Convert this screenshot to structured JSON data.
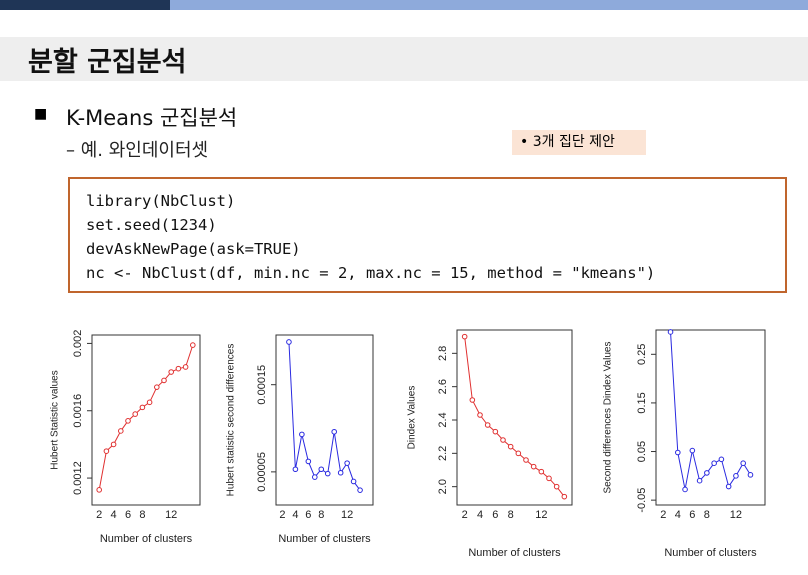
{
  "header": {
    "title": "분할 군집분석"
  },
  "bullet": {
    "title": "K-Means 군집분석",
    "sub": "– 예. 와인데이터셋"
  },
  "note": "• 3개 집단 제안",
  "code": [
    "library(NbClust)",
    "set.seed(1234)",
    "devAskNewPage(ask=TRUE)",
    "nc <- NbClust(df, min.nc = 2, max.nc = 15, method = \"kmeans\")"
  ],
  "chart_data": [
    {
      "type": "line",
      "xlabel": "Number of clusters",
      "ylabel": "Hubert Statistic values",
      "color": "#e03030",
      "x": [
        2,
        3,
        4,
        5,
        6,
        7,
        8,
        9,
        10,
        11,
        12,
        13,
        14,
        15
      ],
      "values": [
        0.00113,
        0.00136,
        0.0014,
        0.00148,
        0.00154,
        0.00158,
        0.00162,
        0.00165,
        0.00174,
        0.00178,
        0.00183,
        0.00185,
        0.00186,
        0.00199
      ],
      "xlim": [
        1,
        16
      ],
      "ylim": [
        0.00104,
        0.00205
      ],
      "xticks": [
        2,
        4,
        6,
        8,
        12
      ],
      "yticks": [
        0.0012,
        0.0016,
        0.002
      ]
    },
    {
      "type": "line",
      "xlabel": "Number of clusters",
      "ylabel": "Hubert statistic second differences",
      "color": "#2a2ae0",
      "x": [
        3,
        4,
        5,
        6,
        7,
        8,
        9,
        10,
        11,
        12,
        13,
        14
      ],
      "values": [
        0.000199,
        5.3e-05,
        9.3e-05,
        6.2e-05,
        4.4e-05,
        5.3e-05,
        4.8e-05,
        9.6e-05,
        4.9e-05,
        6e-05,
        3.9e-05,
        2.9e-05
      ],
      "xlim": [
        1,
        16
      ],
      "ylim": [
        1.2e-05,
        0.000207
      ],
      "xticks": [
        2,
        4,
        6,
        8,
        12
      ],
      "yticks": [
        5e-05,
        0.00015
      ]
    },
    {
      "type": "line",
      "xlabel": "Number of clusters",
      "ylabel": "Dindex Values",
      "color": "#e03030",
      "x": [
        2,
        3,
        4,
        5,
        6,
        7,
        8,
        9,
        10,
        11,
        12,
        13,
        14,
        15
      ],
      "values": [
        2.9,
        2.52,
        2.43,
        2.37,
        2.33,
        2.28,
        2.24,
        2.2,
        2.16,
        2.12,
        2.09,
        2.05,
        2.0,
        1.94
      ],
      "xlim": [
        1,
        16
      ],
      "ylim": [
        1.89,
        2.94
      ],
      "xticks": [
        2,
        4,
        6,
        8,
        12
      ],
      "yticks": [
        {
          "value": 2,
          "label": "2.0"
        },
        2.2,
        2.4,
        2.6,
        2.8
      ]
    },
    {
      "type": "line",
      "xlabel": "Number of clusters",
      "ylabel": "Second differences Dindex Values",
      "color": "#2a2ae0",
      "x": [
        3,
        4,
        5,
        6,
        7,
        8,
        9,
        10,
        11,
        12,
        13,
        14
      ],
      "values": [
        0.296,
        0.048,
        -0.028,
        0.052,
        -0.01,
        0.006,
        0.026,
        0.034,
        -0.022,
        0,
        0.026,
        0.002
      ],
      "xlim": [
        1,
        16
      ],
      "ylim": [
        -0.06,
        0.3
      ],
      "xticks": [
        2,
        4,
        6,
        8,
        12
      ],
      "yticks": [
        -0.05,
        0.05,
        0.15,
        0.25
      ]
    }
  ]
}
